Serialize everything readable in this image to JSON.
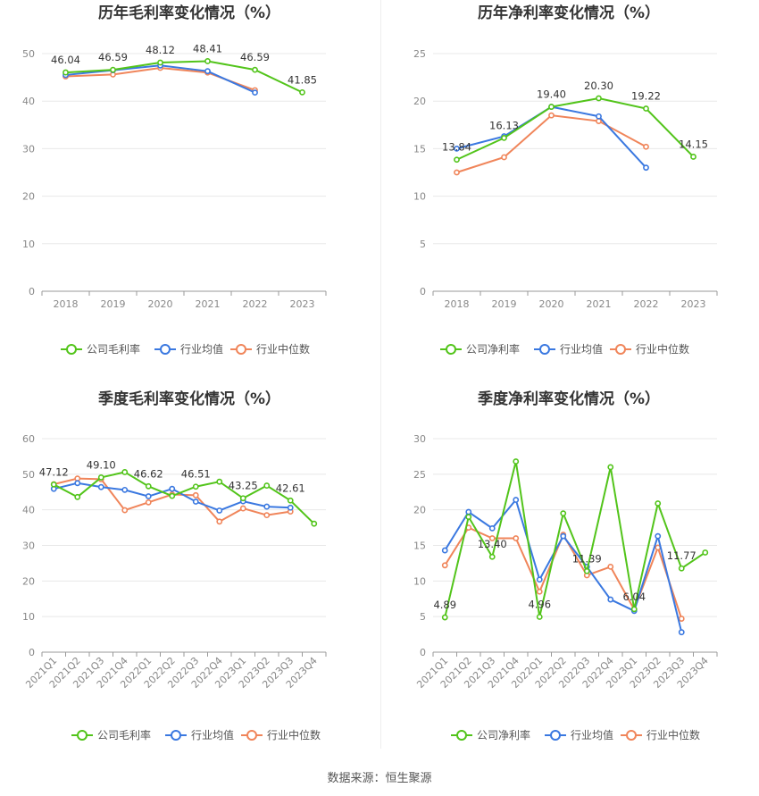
{
  "source_label": "数据来源：恒生聚源",
  "colors": {
    "company": "#52c41a",
    "industry_avg": "#3a78e0",
    "industry_median": "#f0855a"
  },
  "chart_data": [
    {
      "id": "annual-gross",
      "type": "line",
      "title": "历年毛利率变化情况（%）",
      "categories": [
        "2018",
        "2019",
        "2020",
        "2021",
        "2022",
        "2023"
      ],
      "ylim": [
        0,
        50
      ],
      "yticks": [
        0,
        10,
        20,
        30,
        40,
        50
      ],
      "legend_position": "bottom",
      "series": [
        {
          "name": "公司毛利率",
          "color": "#52c41a",
          "values": [
            46.04,
            46.59,
            48.12,
            48.41,
            46.59,
            41.85
          ],
          "labels": [
            "46.04",
            "46.59",
            "48.12",
            "48.41",
            "46.59",
            "41.85"
          ]
        },
        {
          "name": "行业均值",
          "color": "#3a78e0",
          "values": [
            45.5,
            46.5,
            47.5,
            46.3,
            41.8,
            null
          ]
        },
        {
          "name": "行业中位数",
          "color": "#f0855a",
          "values": [
            45.2,
            45.6,
            47.0,
            46.0,
            42.3,
            null
          ]
        }
      ]
    },
    {
      "id": "annual-net",
      "type": "line",
      "title": "历年净利率变化情况（%）",
      "categories": [
        "2018",
        "2019",
        "2020",
        "2021",
        "2022",
        "2023"
      ],
      "ylim": [
        0,
        25
      ],
      "yticks": [
        0,
        5,
        10,
        15,
        20,
        25
      ],
      "legend_position": "bottom",
      "series": [
        {
          "name": "公司净利率",
          "color": "#52c41a",
          "values": [
            13.84,
            16.13,
            19.4,
            20.3,
            19.22,
            14.15
          ],
          "labels": [
            "13.84",
            "16.13",
            "19.40",
            "20.30",
            "19.22",
            "14.15"
          ]
        },
        {
          "name": "行业均值",
          "color": "#3a78e0",
          "values": [
            15.0,
            16.3,
            19.4,
            18.4,
            13.0,
            null
          ]
        },
        {
          "name": "行业中位数",
          "color": "#f0855a",
          "values": [
            12.5,
            14.1,
            18.5,
            17.9,
            15.2,
            null
          ]
        }
      ]
    },
    {
      "id": "quarterly-gross",
      "type": "line",
      "title": "季度毛利率变化情况（%）",
      "categories": [
        "2021Q1",
        "2021Q2",
        "2021Q3",
        "2021Q4",
        "2022Q1",
        "2022Q2",
        "2022Q3",
        "2022Q4",
        "2023Q1",
        "2023Q2",
        "2023Q3",
        "2023Q4"
      ],
      "ylim": [
        0,
        60
      ],
      "yticks": [
        0,
        10,
        20,
        30,
        40,
        50,
        60
      ],
      "legend_position": "bottom",
      "series": [
        {
          "name": "公司毛利率",
          "color": "#52c41a",
          "values": [
            47.12,
            43.6,
            49.1,
            50.6,
            46.62,
            43.9,
            46.51,
            47.9,
            43.25,
            46.8,
            42.61,
            36.1
          ],
          "labels": [
            "47.12",
            "",
            "49.10",
            "",
            "46.62",
            "",
            "46.51",
            "",
            "43.25",
            "",
            "42.61",
            ""
          ]
        },
        {
          "name": "行业均值",
          "color": "#3a78e0",
          "values": [
            45.9,
            47.5,
            46.4,
            45.6,
            43.8,
            45.9,
            42.3,
            39.8,
            42.4,
            40.9,
            40.6,
            null
          ]
        },
        {
          "name": "行业中位数",
          "color": "#f0855a",
          "values": [
            47.2,
            48.8,
            48.6,
            39.9,
            42.1,
            44.3,
            44.1,
            36.7,
            40.4,
            38.5,
            39.5,
            null
          ]
        }
      ]
    },
    {
      "id": "quarterly-net",
      "type": "line",
      "title": "季度净利率变化情况（%）",
      "categories": [
        "2021Q1",
        "2021Q2",
        "2021Q3",
        "2021Q4",
        "2022Q1",
        "2022Q2",
        "2022Q3",
        "2022Q4",
        "2023Q1",
        "2023Q2",
        "2023Q3",
        "2023Q4"
      ],
      "ylim": [
        0,
        30
      ],
      "yticks": [
        0,
        5,
        10,
        15,
        20,
        25,
        30
      ],
      "legend_position": "bottom",
      "series": [
        {
          "name": "公司净利率",
          "color": "#52c41a",
          "values": [
            4.89,
            19.0,
            13.4,
            26.8,
            4.96,
            19.5,
            11.39,
            26.0,
            6.04,
            20.9,
            11.77,
            14.0
          ],
          "labels": [
            "4.89",
            "",
            "13.40",
            "",
            "4.96",
            "",
            "11.39",
            "",
            "6.04",
            "",
            "11.77",
            ""
          ]
        },
        {
          "name": "行业均值",
          "color": "#3a78e0",
          "values": [
            14.3,
            19.7,
            17.4,
            21.4,
            10.2,
            16.3,
            12.0,
            7.4,
            5.8,
            16.3,
            2.8,
            null
          ]
        },
        {
          "name": "行业中位数",
          "color": "#f0855a",
          "values": [
            12.2,
            17.5,
            16.0,
            16.0,
            8.5,
            16.5,
            10.8,
            12.0,
            6.0,
            14.7,
            4.7,
            null
          ]
        }
      ]
    }
  ]
}
